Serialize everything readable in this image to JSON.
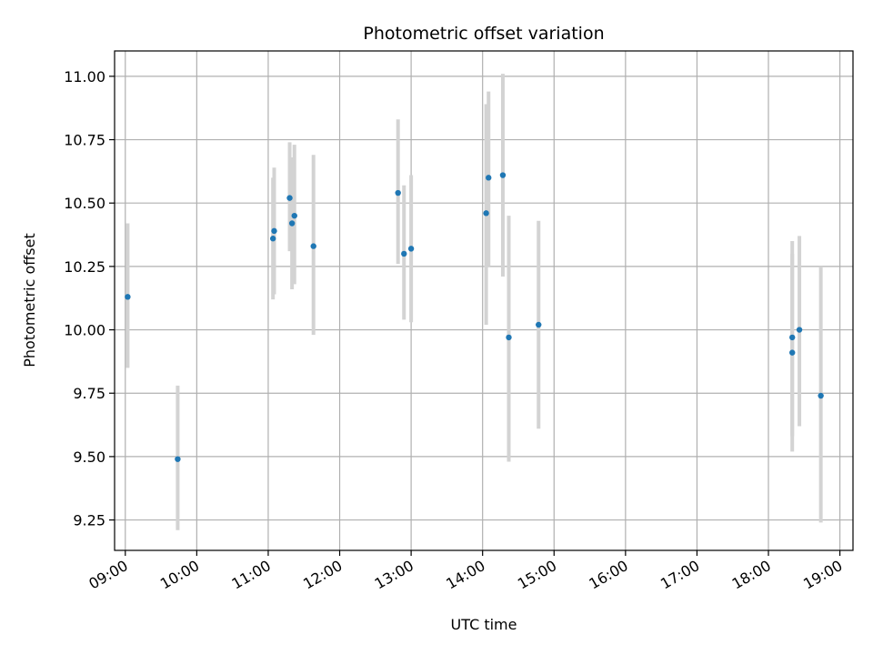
{
  "chart_data": {
    "type": "scatter",
    "title": "Photometric offset variation",
    "xlabel": "UTC time",
    "ylabel": "Photometric offset",
    "x_ticks": [
      "09:00",
      "10:00",
      "11:00",
      "12:00",
      "13:00",
      "14:00",
      "15:00",
      "16:00",
      "17:00",
      "18:00",
      "19:00"
    ],
    "y_ticks": [
      "9.25",
      "9.50",
      "9.75",
      "10.00",
      "10.25",
      "10.50",
      "10.75",
      "11.00"
    ],
    "xlim": [
      "08:51",
      "19:11"
    ],
    "ylim": [
      9.13,
      11.1
    ],
    "grid": true,
    "colors": {
      "point": "#1f77b4",
      "errorbar": "#d3d3d3"
    },
    "points": [
      {
        "t": "09:02",
        "y": 10.13,
        "lo": 9.85,
        "hi": 10.42
      },
      {
        "t": "09:44",
        "y": 9.49,
        "lo": 9.21,
        "hi": 9.78
      },
      {
        "t": "11:04",
        "y": 10.36,
        "lo": 10.12,
        "hi": 10.6
      },
      {
        "t": "11:05",
        "y": 10.39,
        "lo": 10.14,
        "hi": 10.64
      },
      {
        "t": "11:18",
        "y": 10.52,
        "lo": 10.31,
        "hi": 10.74
      },
      {
        "t": "11:20",
        "y": 10.42,
        "lo": 10.16,
        "hi": 10.68
      },
      {
        "t": "11:22",
        "y": 10.45,
        "lo": 10.18,
        "hi": 10.73
      },
      {
        "t": "11:38",
        "y": 10.33,
        "lo": 9.98,
        "hi": 10.69
      },
      {
        "t": "12:49",
        "y": 10.54,
        "lo": 10.26,
        "hi": 10.83
      },
      {
        "t": "12:54",
        "y": 10.3,
        "lo": 10.04,
        "hi": 10.57
      },
      {
        "t": "13:00",
        "y": 10.32,
        "lo": 10.03,
        "hi": 10.61
      },
      {
        "t": "14:03",
        "y": 10.46,
        "lo": 10.02,
        "hi": 10.89
      },
      {
        "t": "14:05",
        "y": 10.6,
        "lo": 10.25,
        "hi": 10.94
      },
      {
        "t": "14:17",
        "y": 10.61,
        "lo": 10.21,
        "hi": 11.01
      },
      {
        "t": "14:22",
        "y": 9.97,
        "lo": 9.48,
        "hi": 10.45
      },
      {
        "t": "14:47",
        "y": 10.02,
        "lo": 9.61,
        "hi": 10.43
      },
      {
        "t": "18:20",
        "y": 9.97,
        "lo": 9.58,
        "hi": 10.35
      },
      {
        "t": "18:20",
        "y": 9.91,
        "lo": 9.52,
        "hi": 10.3
      },
      {
        "t": "18:26",
        "y": 10.0,
        "lo": 9.62,
        "hi": 10.37
      },
      {
        "t": "18:44",
        "y": 9.74,
        "lo": 9.24,
        "hi": 10.25
      }
    ]
  }
}
